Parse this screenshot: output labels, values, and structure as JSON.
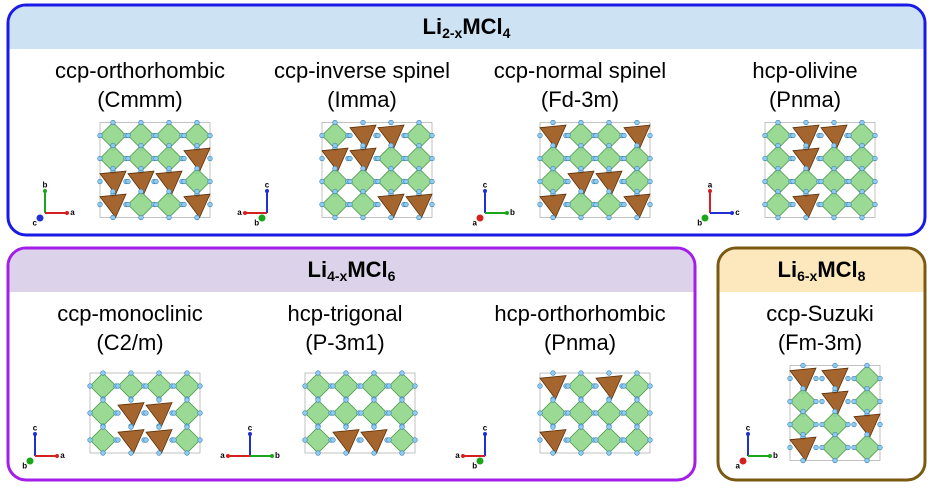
{
  "panels": [
    {
      "title": [
        "Li",
        "2-x",
        "MCl",
        "4"
      ],
      "color": "#1a1ae6",
      "header_color": "#cde2f3",
      "structures": [
        {
          "name": "ccp-orthorhombic",
          "space_group": "(Cmmm)",
          "axes": [
            {
              "label": "b",
              "dir": "up",
              "color": "#1aa51a"
            },
            {
              "label": "a",
              "dir": "right",
              "color": "#d42020"
            },
            {
              "label": "c",
              "dir": "out",
              "color": "#2030d0"
            }
          ]
        },
        {
          "name": "ccp-inverse spinel",
          "space_group": "(Imma)",
          "axes": [
            {
              "label": "c",
              "dir": "up",
              "color": "#2030d0"
            },
            {
              "label": "a",
              "dir": "left",
              "color": "#d42020"
            },
            {
              "label": "b",
              "dir": "out",
              "color": "#1aa51a"
            }
          ]
        },
        {
          "name": "ccp-normal spinel",
          "space_group": "(Fd-3m)",
          "axes": [
            {
              "label": "c",
              "dir": "up",
              "color": "#2030d0"
            },
            {
              "label": "a",
              "dir": "out",
              "color": "#d42020"
            },
            {
              "label": "b",
              "dir": "right",
              "color": "#1aa51a"
            }
          ]
        },
        {
          "name": "hcp-olivine",
          "space_group": "(Pnma)",
          "axes": [
            {
              "label": "a",
              "dir": "up",
              "color": "#d42020"
            },
            {
              "label": "b",
              "dir": "out",
              "color": "#1aa51a"
            },
            {
              "label": "c",
              "dir": "right",
              "color": "#2030d0"
            }
          ]
        }
      ]
    },
    {
      "title": [
        "Li",
        "4-x",
        "MCl",
        "6"
      ],
      "color": "#a31ee8",
      "header_color": "#dcd3ea",
      "structures": [
        {
          "name": "ccp-monoclinic",
          "space_group": "(C2/m)",
          "axes": [
            {
              "label": "c",
              "dir": "up",
              "color": "#2030d0"
            },
            {
              "label": "b",
              "dir": "out",
              "color": "#1aa51a"
            },
            {
              "label": "a",
              "dir": "right",
              "color": "#d42020"
            }
          ]
        },
        {
          "name": "hcp-trigonal",
          "space_group": "(P-3m1)",
          "axes": [
            {
              "label": "c",
              "dir": "up",
              "color": "#2030d0"
            },
            {
              "label": "a",
              "dir": "left",
              "color": "#d42020"
            },
            {
              "label": "b",
              "dir": "right",
              "color": "#1aa51a"
            }
          ]
        },
        {
          "name": "hcp-orthorhombic",
          "space_group": "(Pnma)",
          "axes": [
            {
              "label": "c",
              "dir": "up",
              "color": "#2030d0"
            },
            {
              "label": "a",
              "dir": "left",
              "color": "#d42020"
            },
            {
              "label": "b",
              "dir": "out",
              "color": "#1aa51a"
            }
          ]
        }
      ]
    },
    {
      "title": [
        "Li",
        "6-x",
        "MCl",
        "8"
      ],
      "color": "#7a5a12",
      "header_color": "#fce8bc",
      "structures": [
        {
          "name": "ccp-Suzuki",
          "space_group": "(Fm-3m)",
          "axes": [
            {
              "label": "c",
              "dir": "up",
              "color": "#2030d0"
            },
            {
              "label": "a",
              "dir": "out",
              "color": "#d42020"
            },
            {
              "label": "b",
              "dir": "right",
              "color": "#1aa51a"
            }
          ]
        }
      ]
    }
  ]
}
